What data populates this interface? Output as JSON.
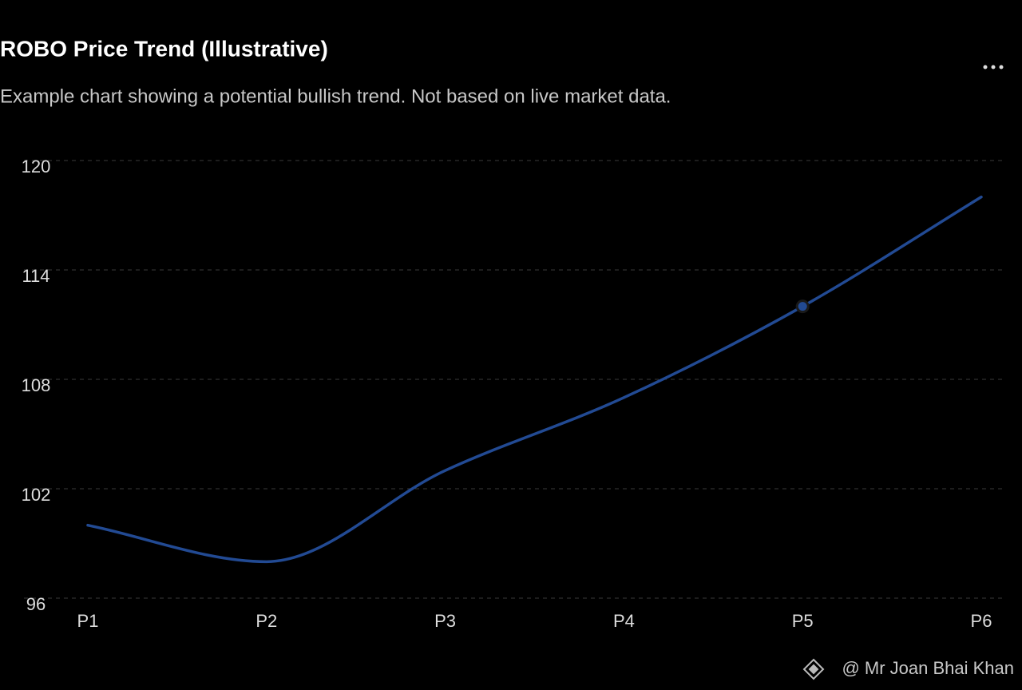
{
  "chart_data": {
    "type": "line",
    "title": "ROBO Price Trend (Illustrative)",
    "subtitle": "Example chart showing a potential bullish trend. Not based on live market data.",
    "categories": [
      "P1",
      "P2",
      "P3",
      "P4",
      "P5",
      "P6"
    ],
    "series": [
      {
        "name": "ROBO",
        "color": "#224a93",
        "values": [
          100,
          98,
          103,
          107,
          112,
          118
        ]
      }
    ],
    "highlight": "P5",
    "ylim": [
      96,
      120
    ],
    "yticks": [
      96,
      102,
      108,
      114,
      120
    ],
    "grid": true,
    "watermark": "@ Mr Joan Bhai Khan"
  }
}
